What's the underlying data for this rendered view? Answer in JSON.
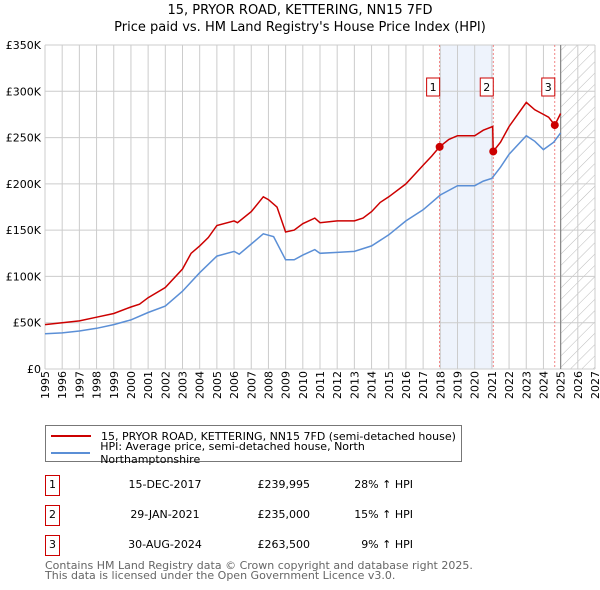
{
  "chart_data": {
    "type": "line",
    "title": "15, PRYOR ROAD, KETTERING, NN15 7FD",
    "subtitle": "Price paid vs. HM Land Registry's House Price Index (HPI)",
    "xlim": [
      1995,
      2027
    ],
    "ylim": [
      0,
      350000
    ],
    "y_ticks": [
      {
        "v": 0,
        "label": "£0"
      },
      {
        "v": 50000,
        "label": "£50K"
      },
      {
        "v": 100000,
        "label": "£100K"
      },
      {
        "v": 150000,
        "label": "£150K"
      },
      {
        "v": 200000,
        "label": "£200K"
      },
      {
        "v": 250000,
        "label": "£250K"
      },
      {
        "v": 300000,
        "label": "£300K"
      },
      {
        "v": 350000,
        "label": "£350K"
      }
    ],
    "x_ticks": [
      "1995",
      "1996",
      "1997",
      "1998",
      "1999",
      "2000",
      "2001",
      "2002",
      "2003",
      "2004",
      "2005",
      "2006",
      "2007",
      "2008",
      "2009",
      "2010",
      "2011",
      "2012",
      "2013",
      "2014",
      "2015",
      "2016",
      "2017",
      "2018",
      "2019",
      "2020",
      "2021",
      "2022",
      "2023",
      "2024",
      "2025",
      "2026",
      "2027"
    ],
    "grid": true,
    "shaded_range": [
      2017.96,
      2021.08
    ],
    "forecast_hatch_from": 2025.0,
    "series": [
      {
        "name": "15, PRYOR ROAD, KETTERING, NN15 7FD (semi-detached house)",
        "color": "#cc0000",
        "x": [
          1995,
          1996,
          1997,
          1998,
          1999,
          2000,
          2000.5,
          2001,
          2002,
          2003,
          2003.5,
          2004,
          2004.5,
          2005,
          2006,
          2006.2,
          2007,
          2007.7,
          2008,
          2008.5,
          2009,
          2009.5,
          2010,
          2010.7,
          2011,
          2012,
          2012.5,
          2013,
          2013.5,
          2014,
          2014.5,
          2015,
          2016,
          2016.5,
          2017,
          2017.5,
          2017.96,
          2018.5,
          2019,
          2020,
          2020.5,
          2021.05,
          2021.08,
          2021.5,
          2022,
          2022.5,
          2023,
          2023.5,
          2024,
          2024.3,
          2024.66,
          2025
        ],
        "y": [
          48000,
          50000,
          52000,
          56000,
          60000,
          67000,
          70000,
          77000,
          88000,
          108000,
          125000,
          133000,
          142000,
          155000,
          160000,
          158000,
          170000,
          186000,
          183000,
          175000,
          148000,
          150000,
          157000,
          163000,
          158000,
          160000,
          160000,
          160000,
          163000,
          170000,
          180000,
          186000,
          200000,
          210000,
          220000,
          230000,
          239995,
          248000,
          252000,
          252000,
          258000,
          262000,
          235000,
          245000,
          262000,
          275000,
          288000,
          280000,
          275000,
          272000,
          263500,
          276000
        ]
      },
      {
        "name": "HPI: Average price, semi-detached house, North Northamptonshire",
        "color": "#5b8fd6",
        "x": [
          1995,
          1996,
          1997,
          1998,
          1999,
          2000,
          2001,
          2002,
          2003,
          2004,
          2005,
          2006,
          2006.3,
          2007,
          2007.7,
          2008.3,
          2009,
          2009.5,
          2010,
          2010.7,
          2011,
          2012,
          2013,
          2014,
          2015,
          2016,
          2017,
          2017.5,
          2018,
          2019,
          2020,
          2020.5,
          2021,
          2021.5,
          2022,
          2023,
          2023.5,
          2024,
          2024.6,
          2025
        ],
        "y": [
          38000,
          39000,
          41000,
          44000,
          48000,
          53000,
          61000,
          68000,
          84000,
          104000,
          122000,
          127000,
          124000,
          135000,
          146000,
          143000,
          118000,
          118000,
          123000,
          129000,
          125000,
          126000,
          127000,
          133000,
          145000,
          160000,
          172000,
          180000,
          188000,
          198000,
          198000,
          203000,
          206000,
          218000,
          232000,
          252000,
          246000,
          237000,
          245000,
          255000
        ]
      }
    ],
    "sales": [
      {
        "label": "1",
        "x": 2017.96,
        "y": 239995
      },
      {
        "label": "2",
        "x": 2021.08,
        "y": 235000
      },
      {
        "label": "3",
        "x": 2024.66,
        "y": 263500
      }
    ]
  },
  "header": {
    "title": "15, PRYOR ROAD, KETTERING, NN15 7FD",
    "subtitle": "Price paid vs. HM Land Registry's House Price Index (HPI)"
  },
  "legend": {
    "property": "15, PRYOR ROAD, KETTERING, NN15 7FD (semi-detached house)",
    "hpi": "HPI: Average price, semi-detached house, North Northamptonshire"
  },
  "transactions": [
    {
      "num": "1",
      "date": "15-DEC-2017",
      "price": "£239,995",
      "hpi": "28% ↑ HPI"
    },
    {
      "num": "2",
      "date": "29-JAN-2021",
      "price": "£235,000",
      "hpi": "15% ↑ HPI"
    },
    {
      "num": "3",
      "date": "30-AUG-2024",
      "price": "£263,500",
      "hpi": "9% ↑ HPI"
    }
  ],
  "footer": {
    "line1": "Contains HM Land Registry data © Crown copyright and database right 2025.",
    "line2": "This data is licensed under the Open Government Licence v3.0."
  }
}
